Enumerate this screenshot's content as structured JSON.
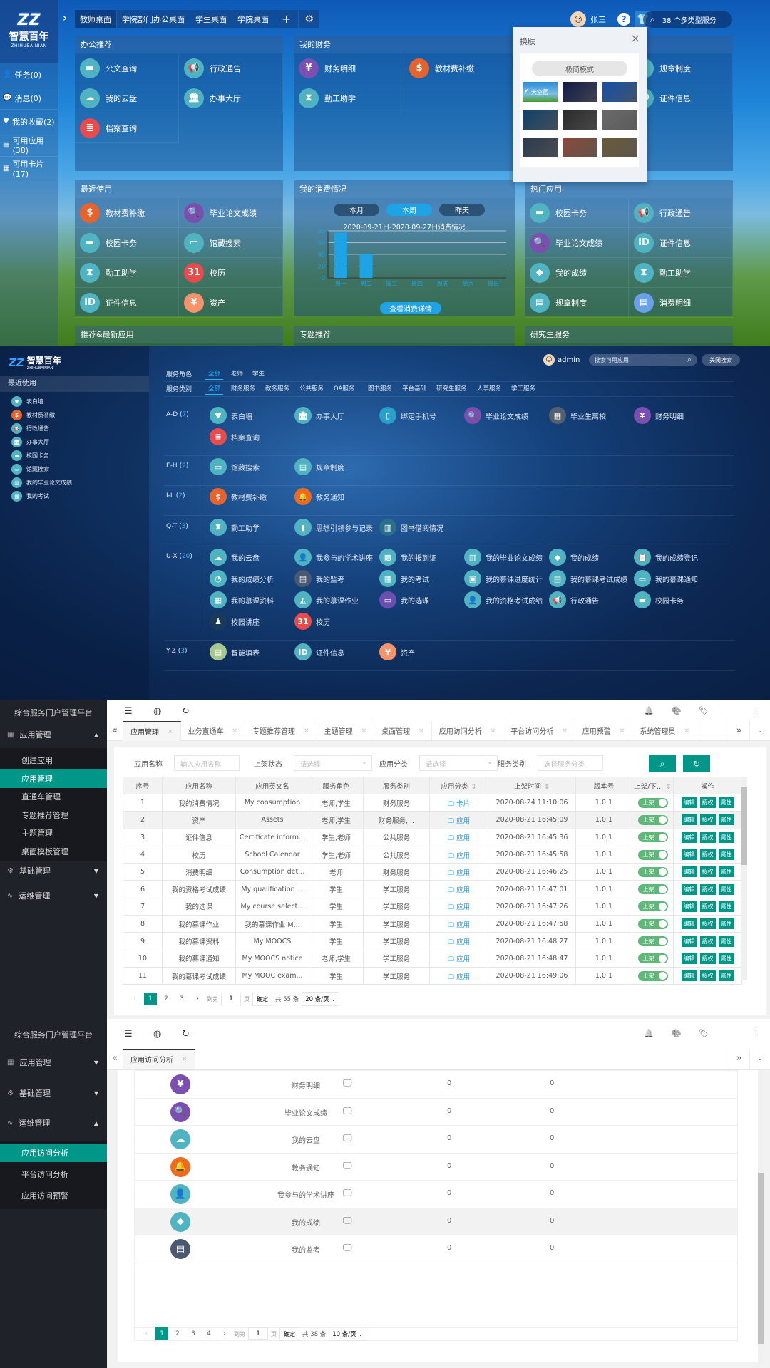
{
  "portal": {
    "logo_cn": "智慧百年",
    "logo_en": "ZHIHUBAINIAN",
    "side": [
      {
        "icon": "user-icon",
        "label": "任务(0)"
      },
      {
        "icon": "message-icon",
        "label": "消息(0)"
      },
      {
        "icon": "heart-icon",
        "label": "我的收藏(2)"
      },
      {
        "icon": "apps-icon",
        "label": "可用应用(38)"
      },
      {
        "icon": "grid-icon",
        "label": "可用卡片(17)"
      }
    ],
    "tabs": [
      "教师桌面",
      "学院部门办公桌面",
      "学生桌面",
      "学院桌面"
    ],
    "user": "张三",
    "search": "38 个多类型服务",
    "panels": [
      {
        "title": "办公推荐",
        "items": [
          {
            "label": "公文查询",
            "icon": "card"
          },
          {
            "label": "行政通告",
            "icon": "megaphone"
          },
          {
            "label": "我的云盘",
            "icon": "cloud"
          },
          {
            "label": "办事大厅",
            "icon": "bank"
          },
          {
            "label": "档案查询",
            "icon": "archive"
          }
        ]
      },
      {
        "title": "我的财务",
        "items": [
          {
            "label": "财务明细",
            "icon": "shield-yen"
          },
          {
            "label": "教材费补缴",
            "icon": "money"
          },
          {
            "label": "勤工助学",
            "icon": "hourglass"
          }
        ]
      },
      {
        "title": "",
        "items": [
          {
            "label": "规章制度",
            "icon": "doc"
          },
          {
            "label": "证件信息",
            "icon": "id"
          }
        ]
      },
      {
        "title": "最近使用",
        "items": [
          {
            "label": "教材费补缴",
            "icon": "money"
          },
          {
            "label": "毕业论文成绩",
            "icon": "thesis"
          },
          {
            "label": "校园卡务",
            "icon": "card"
          },
          {
            "label": "馆藏搜索",
            "icon": "monitor"
          },
          {
            "label": "勤工助学",
            "icon": "hourglass"
          },
          {
            "label": "校历",
            "icon": "calendar"
          },
          {
            "label": "证件信息",
            "icon": "id"
          },
          {
            "label": "资产",
            "icon": "asset"
          }
        ]
      },
      {
        "title": "热门应用",
        "items": [
          {
            "label": "校园卡务",
            "icon": "card"
          },
          {
            "label": "行政通告",
            "icon": "megaphone"
          },
          {
            "label": "毕业论文成绩",
            "icon": "thesis"
          },
          {
            "label": "证件信息",
            "icon": "id"
          },
          {
            "label": "我的成绩",
            "icon": "layers"
          },
          {
            "label": "勤工助学",
            "icon": "hourglass"
          },
          {
            "label": "规章制度",
            "icon": "doc"
          },
          {
            "label": "消费明细",
            "icon": "receipt"
          }
        ]
      }
    ],
    "consumption": {
      "title": "我的消费情况",
      "ranges": [
        "本月",
        "本周",
        "昨天"
      ],
      "active_range": "本周",
      "detail_button": "查看消费详情"
    },
    "bottom_titles": [
      "推荐&最新应用",
      "专题推荐",
      "研究生服务"
    ],
    "skin_popup": {
      "title": "换肤",
      "minimal_mode": "极简模式",
      "selected_label": "天空蓝",
      "thumb_colors": [
        "#3a8fd8",
        "#101a48",
        "#1450a8",
        "#12406a",
        "#2a2a2a",
        "#6a6a6a",
        "#2b3a4e",
        "#8a4a3a",
        "#6a5a3a"
      ]
    }
  },
  "chart_data": {
    "type": "bar",
    "title": "2020-09-21日-2020-09-27日消费情况",
    "categories": [
      "周一",
      "周二",
      "周三",
      "周四",
      "周五",
      "周六",
      "周日"
    ],
    "values": [
      77,
      40,
      0,
      0,
      0,
      0,
      0
    ],
    "yticks": [
      0,
      20,
      40,
      60,
      80
    ],
    "ylim": [
      0,
      80
    ],
    "grid": true,
    "bar_color": "#1ea3e6"
  },
  "catalog": {
    "logo_cn": "智慧百年",
    "logo_en": "ZHIHUBAINIAN",
    "recent_title": "最近使用",
    "recent": [
      {
        "label": "表白墙",
        "icon": "heart"
      },
      {
        "label": "教材费补缴",
        "icon": "money"
      },
      {
        "label": "行政通告",
        "icon": "megaphone"
      },
      {
        "label": "办事大厅",
        "icon": "bank"
      },
      {
        "label": "校园卡务",
        "icon": "card"
      },
      {
        "label": "馆藏搜索",
        "icon": "monitor"
      },
      {
        "label": "我的毕业论文成绩",
        "icon": "thesis2"
      },
      {
        "label": "我的考试",
        "icon": "exam"
      }
    ],
    "user": "admin",
    "search_placeholder": "搜索可用应用",
    "close_search": "关闭搜索",
    "role_label": "服务角色",
    "roles": [
      "全部",
      "老师",
      "学生"
    ],
    "cat_label": "服务类别",
    "cats": [
      "全部",
      "财务服务",
      "教务服务",
      "公共服务",
      "OA服务",
      "图书服务",
      "平台基础",
      "研究生服务",
      "人事服务",
      "学工服务"
    ],
    "groups": [
      {
        "range": "A-D",
        "count": "7",
        "items": [
          {
            "label": "表白墙",
            "icon": "heart"
          },
          {
            "label": "办事大厅",
            "icon": "bank"
          },
          {
            "label": "绑定手机号",
            "icon": "phone"
          },
          {
            "label": "毕业论文成绩",
            "icon": "thesis"
          },
          {
            "label": "毕业生离校",
            "icon": "leave"
          },
          {
            "label": "财务明细",
            "icon": "shield-yen"
          },
          {
            "label": "档案查询",
            "icon": "archive"
          }
        ]
      },
      {
        "range": "E-H",
        "count": "2",
        "items": [
          {
            "label": "馆藏搜索",
            "icon": "monitor"
          },
          {
            "label": "规章制度",
            "icon": "doc"
          }
        ]
      },
      {
        "range": "I-L",
        "count": "2",
        "items": [
          {
            "label": "教材费补缴",
            "icon": "money"
          },
          {
            "label": "教务通知",
            "icon": "bell"
          }
        ]
      },
      {
        "range": "Q-T",
        "count": "3",
        "items": [
          {
            "label": "勤工助学",
            "icon": "hourglass"
          },
          {
            "label": "思想引领参与记录",
            "icon": "book"
          },
          {
            "label": "图书借阅情况",
            "icon": "books"
          }
        ]
      },
      {
        "range": "U-X",
        "count": "20",
        "items": [
          {
            "label": "我的云盘",
            "icon": "cloud"
          },
          {
            "label": "我参与的学术讲座",
            "icon": "lecture"
          },
          {
            "label": "我的报到证",
            "icon": "qr"
          },
          {
            "label": "我的毕业论文成绩",
            "icon": "thesis2"
          },
          {
            "label": "我的成绩",
            "icon": "layers"
          },
          {
            "label": "我的成绩登记",
            "icon": "clipboard"
          },
          {
            "label": "我的成绩分析",
            "icon": "pie"
          },
          {
            "label": "我的监考",
            "icon": "sheet"
          },
          {
            "label": "我的考试",
            "icon": "exam"
          },
          {
            "label": "我的慕课进度统计",
            "icon": "mooc"
          },
          {
            "label": "我的慕课考试成绩",
            "icon": "mooc2"
          },
          {
            "label": "我的慕课通知",
            "icon": "mooc3"
          },
          {
            "label": "我的慕课资料",
            "icon": "mooc4"
          },
          {
            "label": "我的慕课作业",
            "icon": "mooc5"
          },
          {
            "label": "我的选课",
            "icon": "select"
          },
          {
            "label": "我的资格考试成绩",
            "icon": "qual"
          },
          {
            "label": "行政通告",
            "icon": "megaphone"
          },
          {
            "label": "校园卡务",
            "icon": "card"
          },
          {
            "label": "校园讲座",
            "icon": "speaker"
          },
          {
            "label": "校历",
            "icon": "calendar"
          }
        ]
      },
      {
        "range": "Y-Z",
        "count": "3",
        "items": [
          {
            "label": "智能填表",
            "icon": "form"
          },
          {
            "label": "证件信息",
            "icon": "id"
          },
          {
            "label": "资产",
            "icon": "asset"
          }
        ]
      }
    ]
  },
  "admin1": {
    "title": "综合服务门户管理平台",
    "menu": [
      {
        "label": "应用管理",
        "icon": "app-manage-icon",
        "open": true
      },
      {
        "label": "基础管理",
        "icon": "gear-icon"
      },
      {
        "label": "运维管理",
        "icon": "pulse-icon"
      }
    ],
    "submenu": [
      "创建应用",
      "应用管理",
      "直通车管理",
      "专题推荐管理",
      "主题管理",
      "桌面模板管理"
    ],
    "active_sub": "应用管理",
    "tabs": [
      "应用管理",
      "业务直通车",
      "专题推荐管理",
      "主题管理",
      "桌面管理",
      "应用访问分析",
      "平台访问分析",
      "应用预警",
      "系统管理员"
    ],
    "filters": [
      {
        "label": "应用名称",
        "placeholder": "输入应用名称"
      },
      {
        "label": "上架状态",
        "placeholder": "请选择"
      },
      {
        "label": "应用分类",
        "placeholder": "请选择"
      },
      {
        "label": "服务类别",
        "placeholder": "选择服务分类"
      }
    ],
    "columns": [
      "序号",
      "应用名称",
      "应用英文名",
      "服务角色",
      "服务类别",
      "应用分类",
      "上架时间",
      "版本号",
      "上架/下...",
      "操作"
    ],
    "rows": [
      [
        "1",
        "我的消费情况",
        "My consumption",
        "老师,学生",
        "财务服务",
        "卡片",
        "2020-08-24 11:10:06",
        "1.0.1"
      ],
      [
        "2",
        "资产",
        "Assets",
        "老师,学生",
        "财务服务,...",
        "应用",
        "2020-08-21 16:45:09",
        "1.0.1"
      ],
      [
        "3",
        "证件信息",
        "Certificate inform...",
        "学生,老师",
        "公共服务",
        "应用",
        "2020-08-21 16:45:36",
        "1.0.1"
      ],
      [
        "4",
        "校历",
        "School Calendar",
        "学生,老师",
        "公共服务",
        "应用",
        "2020-08-21 16:45:58",
        "1.0.1"
      ],
      [
        "5",
        "消费明细",
        "Consumption det...",
        "老师",
        "财务服务",
        "应用",
        "2020-08-21 16:46:25",
        "1.0.1"
      ],
      [
        "6",
        "我的资格考试成绩",
        "My qualification ...",
        "学生",
        "学工服务",
        "应用",
        "2020-08-21 16:47:01",
        "1.0.1"
      ],
      [
        "7",
        "我的选课",
        "My course select...",
        "学生",
        "学工服务",
        "应用",
        "2020-08-21 16:47:26",
        "1.0.1"
      ],
      [
        "8",
        "我的慕课作业",
        "我的慕课作业 M...",
        "学生",
        "学工服务",
        "应用",
        "2020-08-21 16:47:58",
        "1.0.1"
      ],
      [
        "9",
        "我的慕课资料",
        "My MOOCS",
        "学生",
        "学工服务",
        "应用",
        "2020-08-21 16:48:27",
        "1.0.1"
      ],
      [
        "10",
        "我的慕课通知",
        "My MOOCS notice",
        "老师,学生",
        "学工服务",
        "应用",
        "2020-08-21 16:48:47",
        "1.0.1"
      ],
      [
        "11",
        "我的慕课考试成绩",
        "My MOOC exam...",
        "学生",
        "学工服务",
        "应用",
        "2020-08-21 16:49:06",
        "1.0.1"
      ]
    ],
    "status_label": "上架",
    "actions": [
      "编辑",
      "授权",
      "属性"
    ],
    "pagination": {
      "pages": [
        "1",
        "2",
        "3"
      ],
      "current": "1",
      "goto": "到第",
      "page_value": "1",
      "page_unit": "页",
      "confirm": "确定",
      "total": "共 55 条",
      "per_page": "20 条/页"
    }
  },
  "admin2": {
    "title": "综合服务门户管理平台",
    "menu": [
      {
        "label": "应用管理",
        "icon": "app-manage-icon"
      },
      {
        "label": "基础管理",
        "icon": "gear-icon"
      },
      {
        "label": "运维管理",
        "icon": "pulse-icon",
        "open": true
      }
    ],
    "submenu": [
      "应用访问分析",
      "平台访问分析",
      "应用访问预警"
    ],
    "active_sub": "应用访问分析",
    "tabs": [
      "应用访问分析"
    ],
    "rows": [
      {
        "icon": "shield-yen",
        "name": "财务明细",
        "a": "0",
        "b": "0"
      },
      {
        "icon": "thesis",
        "name": "毕业论文成绩",
        "a": "0",
        "b": "0"
      },
      {
        "icon": "cloud",
        "name": "我的云盘",
        "a": "0",
        "b": "0"
      },
      {
        "icon": "bell",
        "name": "教务通知",
        "a": "0",
        "b": "0"
      },
      {
        "icon": "lecture",
        "name": "我参与的学术讲座",
        "a": "0",
        "b": "0"
      },
      {
        "icon": "layers",
        "name": "我的成绩",
        "a": "0",
        "b": "0"
      },
      {
        "icon": "sheet",
        "name": "我的监考",
        "a": "0",
        "b": "0"
      }
    ],
    "pagination": {
      "pages": [
        "1",
        "2",
        "3",
        "4"
      ],
      "current": "1",
      "goto": "到第",
      "page_value": "1",
      "page_unit": "页",
      "confirm": "确定",
      "total": "共 38 条",
      "per_page": "10 条/页"
    }
  }
}
